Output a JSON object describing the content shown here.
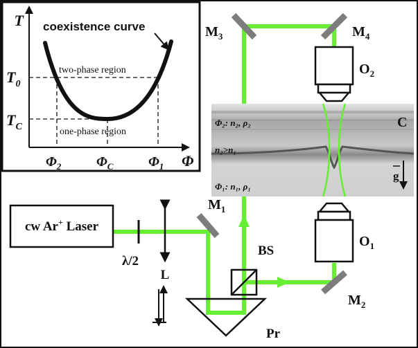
{
  "colors": {
    "beam": "#66ee33",
    "mirror": "#7d7d7d",
    "cell_bg": "#c6c6c6",
    "ink": "#111111"
  },
  "inset": {
    "axis_y": "T",
    "axis_x": "Φ",
    "curve_label": "coexistence curve",
    "two_phase": "two-phase region",
    "one_phase": "one-phase region",
    "t0_main": "T",
    "t0_sub": "0",
    "tc_main": "T",
    "tc_sub": "C",
    "phi2_main": "Φ",
    "phi2_sub": "2",
    "phic_main": "Φ",
    "phic_sub": "C",
    "phi1_main": "Φ",
    "phi1_sub": "1"
  },
  "optics": {
    "laser": "cw Ar",
    "laser_sup": "+",
    "laser_tail": " Laser",
    "waveplate": "λ/2",
    "lens": "L",
    "prism": "Pr",
    "beamsplitter": "BS",
    "m1": "M",
    "m1_sub": "1",
    "m2": "M",
    "m2_sub": "2",
    "m3": "M",
    "m3_sub": "3",
    "m4": "M",
    "m4_sub": "4",
    "o1": "O",
    "o1_sub": "1",
    "o2": "O",
    "o2_sub": "2"
  },
  "cell": {
    "label": "C",
    "top_phase": "Φ₂: n₂, ρ₂",
    "index_rel": "n₂>n₁",
    "bottom_phase": "Φ₁: n₁, ρ₁",
    "gravity": "g"
  }
}
